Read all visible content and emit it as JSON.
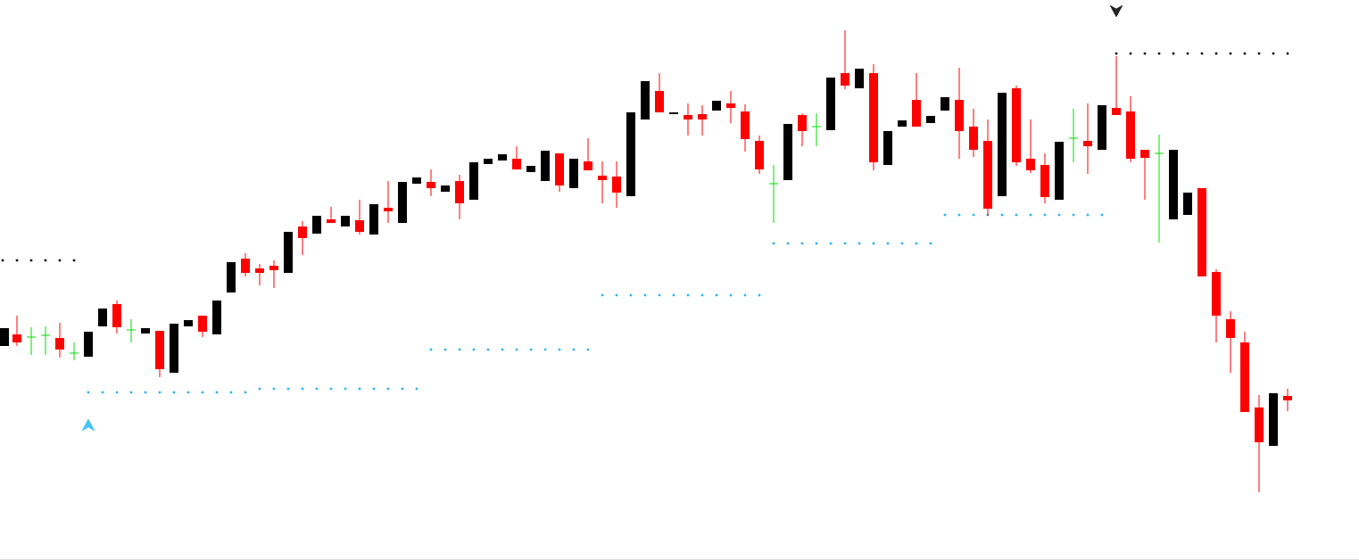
{
  "chart_data": {
    "type": "candlestick",
    "categories": [
      null,
      null,
      null,
      null,
      null,
      null,
      null,
      null,
      null,
      null,
      null,
      null,
      null,
      null,
      null,
      null,
      null,
      null,
      null,
      null,
      null,
      null,
      null,
      null,
      null,
      null,
      null,
      null,
      null,
      null,
      null,
      null,
      null,
      null,
      null,
      null,
      null,
      null,
      null,
      null,
      null,
      null,
      null,
      null,
      null,
      null,
      null,
      null,
      null,
      null,
      null,
      null,
      null,
      null,
      null,
      null,
      null,
      null,
      null,
      null,
      null,
      null,
      null,
      null,
      null,
      null,
      null,
      null,
      null,
      null,
      null,
      null,
      null,
      null,
      null,
      null,
      null,
      null,
      null,
      null,
      null,
      null,
      null,
      null,
      null,
      null,
      null,
      null,
      null,
      null,
      null
    ],
    "open": [
      240,
      253,
      250,
      252,
      249,
      232,
      228,
      262,
      287,
      258,
      254,
      257,
      210,
      262,
      274,
      253,
      300,
      338,
      327,
      330,
      322,
      374,
      366,
      382,
      374,
      381,
      365,
      395,
      378,
      422,
      424,
      413,
      425,
      404,
      444,
      448,
      450,
      435,
      425,
      456,
      417,
      447,
      431,
      430,
      408,
      494,
      526,
      500,
      499,
      500,
      504,
      512,
      503,
      470,
      422,
      426,
      499,
      486,
      482,
      546,
      529,
      546,
      443,
      486,
      516,
      490,
      504,
      516,
      486,
      470,
      408,
      529,
      450,
      443,
      404,
      473,
      470,
      460,
      507,
      503,
      460,
      456,
      382,
      387,
      417,
      323,
      270,
      244,
      171,
      128,
      184
    ],
    "high": [
      260,
      274,
      261,
      262,
      266,
      244,
      256,
      282,
      291,
      270,
      260,
      257,
      265,
      269,
      274,
      291,
      334,
      344,
      332,
      336,
      368,
      380,
      386,
      396,
      386,
      404,
      399,
      425,
      424,
      429,
      438,
      420,
      432,
      446,
      450,
      455,
      464,
      442,
      459,
      456,
      450,
      473,
      447,
      447,
      502,
      537,
      546,
      502,
      512,
      510,
      515,
      526,
      511,
      476,
      443,
      489,
      501,
      501,
      541,
      594,
      551,
      556,
      481,
      493,
      546,
      498,
      519,
      552,
      506,
      494,
      524,
      532,
      494,
      456,
      469,
      506,
      512,
      510,
      565,
      520,
      460,
      477,
      460,
      412,
      417,
      326,
      279,
      256,
      185,
      187,
      192
    ],
    "low": [
      240,
      240,
      230,
      230,
      227,
      224,
      228,
      262,
      254,
      244,
      254,
      205,
      210,
      262,
      250,
      253,
      300,
      318,
      308,
      305,
      322,
      342,
      366,
      378,
      374,
      365,
      365,
      378,
      378,
      422,
      408,
      413,
      382,
      404,
      444,
      448,
      438,
      435,
      425,
      413,
      417,
      437,
      400,
      395,
      408,
      494,
      502,
      500,
      476,
      476,
      504,
      490,
      458,
      433,
      378,
      426,
      464,
      464,
      482,
      528,
      529,
      437,
      443,
      486,
      486,
      490,
      504,
      450,
      452,
      386,
      408,
      442,
      434,
      400,
      404,
      446,
      433,
      460,
      499,
      446,
      404,
      356,
      382,
      387,
      318,
      244,
      210,
      166,
      76,
      128,
      167
    ],
    "close": [
      260,
      244,
      250,
      252,
      236,
      232,
      256,
      282,
      261,
      258,
      260,
      214,
      265,
      269,
      256,
      291,
      334,
      322,
      322,
      325,
      368,
      361,
      386,
      378,
      386,
      368,
      399,
      391,
      424,
      429,
      417,
      420,
      400,
      446,
      450,
      455,
      438,
      442,
      459,
      420,
      450,
      437,
      426,
      412,
      502,
      537,
      502,
      502,
      494,
      494,
      515,
      507,
      472,
      438,
      422,
      489,
      481,
      486,
      541,
      532,
      551,
      446,
      481,
      493,
      486,
      498,
      519,
      481,
      460,
      394,
      524,
      446,
      437,
      407,
      469,
      473,
      464,
      510,
      499,
      450,
      451,
      456,
      460,
      412,
      318,
      274,
      249,
      166,
      132,
      187,
      179
    ],
    "up_color": "#000000",
    "down_color": "#ff0000",
    "doji_color": "#00dd00",
    "ylim": [
      0,
      628
    ],
    "levels": [
      {
        "value": 336,
        "start": 0,
        "end": 5,
        "color": "#000000"
      },
      {
        "value": 188,
        "start": 6,
        "end": 17,
        "color": "#29b6f6"
      },
      {
        "value": 192,
        "start": 18,
        "end": 29,
        "color": "#29b6f6"
      },
      {
        "value": 236,
        "start": 30,
        "end": 41,
        "color": "#29b6f6"
      },
      {
        "value": 297,
        "start": 42,
        "end": 53,
        "color": "#29b6f6"
      },
      {
        "value": 355,
        "start": 54,
        "end": 65,
        "color": "#29b6f6"
      },
      {
        "value": 387,
        "start": 66,
        "end": 77,
        "color": "#29b6f6"
      },
      {
        "value": 568,
        "start": 78,
        "end": 90,
        "color": "#000000"
      }
    ],
    "signals": [
      {
        "index": 6,
        "value": 151,
        "direction": "up",
        "color": "#29b6f6"
      },
      {
        "index": 78,
        "value": 616,
        "direction": "down",
        "color": "#000000"
      }
    ]
  }
}
